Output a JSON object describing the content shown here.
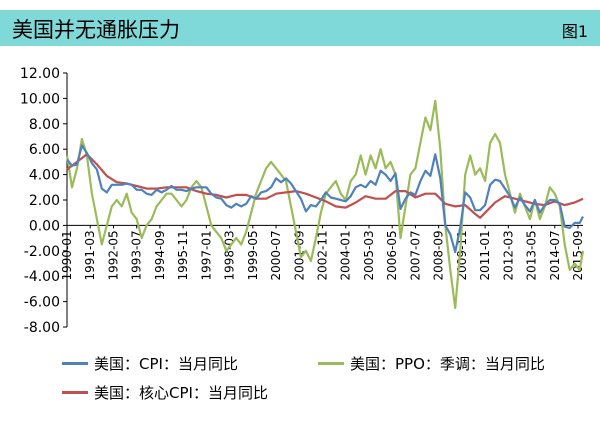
{
  "header": {
    "title": "美国并无通胀压力",
    "figure_label": "图1",
    "background": "#7fd9d9"
  },
  "chart_data": {
    "type": "line",
    "title": "美国并无通胀压力",
    "xlabel": "",
    "ylabel": "",
    "ylim": [
      -8,
      12
    ],
    "yticks": [
      -8,
      -6,
      -4,
      -2,
      0,
      2,
      4,
      6,
      8,
      10,
      12
    ],
    "ytick_labels": [
      "-8.00",
      "-6.00",
      "-4.00",
      "-2.00",
      "0.00",
      "2.00",
      "4.00",
      "6.00",
      "8.00",
      "10.00",
      "12.00"
    ],
    "xtick_labels": [
      "1990-01",
      "1991-03",
      "1992-05",
      "1993-07",
      "1994-09",
      "1995-11",
      "1997-01",
      "1998-03",
      "1999-05",
      "2000-07",
      "2001-09",
      "2002-11",
      "2004-01",
      "2005-03",
      "2006-05",
      "2007-07",
      "2008-09",
      "2009-11",
      "2011-01",
      "2012-03",
      "2013-05",
      "2014-07",
      "2015-09"
    ],
    "grid": false,
    "legend_position": "bottom",
    "series": [
      {
        "name": "美国：CPI：当月同比",
        "color": "#4f81bd",
        "points": [
          [
            "1990-01",
            5.2
          ],
          [
            "1990-04",
            4.7
          ],
          [
            "1990-07",
            4.8
          ],
          [
            "1990-10",
            6.3
          ],
          [
            "1991-01",
            5.7
          ],
          [
            "1991-04",
            4.9
          ],
          [
            "1991-07",
            4.4
          ],
          [
            "1991-10",
            2.9
          ],
          [
            "1992-01",
            2.6
          ],
          [
            "1992-04",
            3.2
          ],
          [
            "1992-07",
            3.2
          ],
          [
            "1992-10",
            3.2
          ],
          [
            "1993-01",
            3.3
          ],
          [
            "1993-04",
            3.2
          ],
          [
            "1993-07",
            2.8
          ],
          [
            "1993-10",
            2.8
          ],
          [
            "1994-01",
            2.5
          ],
          [
            "1994-04",
            2.4
          ],
          [
            "1994-07",
            2.8
          ],
          [
            "1994-10",
            2.6
          ],
          [
            "1995-01",
            2.8
          ],
          [
            "1995-04",
            3.1
          ],
          [
            "1995-07",
            2.8
          ],
          [
            "1995-10",
            2.8
          ],
          [
            "1996-01",
            2.7
          ],
          [
            "1996-04",
            2.9
          ],
          [
            "1996-07",
            3.0
          ],
          [
            "1996-10",
            3.0
          ],
          [
            "1997-01",
            3.0
          ],
          [
            "1997-04",
            2.5
          ],
          [
            "1997-07",
            2.2
          ],
          [
            "1997-10",
            2.1
          ],
          [
            "1998-01",
            1.6
          ],
          [
            "1998-04",
            1.4
          ],
          [
            "1998-07",
            1.7
          ],
          [
            "1998-10",
            1.5
          ],
          [
            "1999-01",
            1.7
          ],
          [
            "1999-04",
            2.3
          ],
          [
            "1999-07",
            2.1
          ],
          [
            "1999-10",
            2.6
          ],
          [
            "2000-01",
            2.7
          ],
          [
            "2000-04",
            3.0
          ],
          [
            "2000-07",
            3.7
          ],
          [
            "2000-10",
            3.4
          ],
          [
            "2001-01",
            3.7
          ],
          [
            "2001-04",
            3.3
          ],
          [
            "2001-07",
            2.7
          ],
          [
            "2001-10",
            2.1
          ],
          [
            "2002-01",
            1.1
          ],
          [
            "2002-04",
            1.6
          ],
          [
            "2002-07",
            1.5
          ],
          [
            "2002-10",
            2.0
          ],
          [
            "2003-01",
            2.6
          ],
          [
            "2003-04",
            2.2
          ],
          [
            "2003-07",
            2.1
          ],
          [
            "2003-10",
            2.0
          ],
          [
            "2004-01",
            1.9
          ],
          [
            "2004-04",
            2.3
          ],
          [
            "2004-07",
            3.0
          ],
          [
            "2004-10",
            3.2
          ],
          [
            "2005-01",
            3.0
          ],
          [
            "2005-04",
            3.5
          ],
          [
            "2005-07",
            3.2
          ],
          [
            "2005-10",
            4.3
          ],
          [
            "2006-01",
            4.0
          ],
          [
            "2006-04",
            3.5
          ],
          [
            "2006-07",
            4.1
          ],
          [
            "2006-10",
            1.3
          ],
          [
            "2007-01",
            2.1
          ],
          [
            "2007-04",
            2.6
          ],
          [
            "2007-07",
            2.4
          ],
          [
            "2007-10",
            3.5
          ],
          [
            "2008-01",
            4.3
          ],
          [
            "2008-04",
            3.9
          ],
          [
            "2008-07",
            5.6
          ],
          [
            "2008-10",
            3.7
          ],
          [
            "2009-01",
            0.0
          ],
          [
            "2009-04",
            -0.7
          ],
          [
            "2009-07",
            -2.1
          ],
          [
            "2009-10",
            -0.2
          ],
          [
            "2010-01",
            2.6
          ],
          [
            "2010-04",
            2.2
          ],
          [
            "2010-07",
            1.2
          ],
          [
            "2010-10",
            1.2
          ],
          [
            "2011-01",
            1.6
          ],
          [
            "2011-04",
            3.2
          ],
          [
            "2011-07",
            3.6
          ],
          [
            "2011-10",
            3.5
          ],
          [
            "2012-01",
            2.9
          ],
          [
            "2012-04",
            2.3
          ],
          [
            "2012-07",
            1.4
          ],
          [
            "2012-10",
            2.2
          ],
          [
            "2013-01",
            1.6
          ],
          [
            "2013-04",
            1.1
          ],
          [
            "2013-07",
            2.0
          ],
          [
            "2013-10",
            1.0
          ],
          [
            "2014-01",
            1.6
          ],
          [
            "2014-04",
            2.0
          ],
          [
            "2014-07",
            2.0
          ],
          [
            "2014-10",
            1.7
          ],
          [
            "2015-01",
            -0.1
          ],
          [
            "2015-04",
            -0.2
          ],
          [
            "2015-07",
            0.2
          ],
          [
            "2015-10",
            0.2
          ],
          [
            "2015-12",
            0.7
          ]
        ]
      },
      {
        "name": "美国：PPO：季调：当月同比",
        "color": "#9bbb59",
        "points": [
          [
            "1990-01",
            5.5
          ],
          [
            "1990-04",
            3.0
          ],
          [
            "1990-07",
            4.5
          ],
          [
            "1990-10",
            6.8
          ],
          [
            "1991-01",
            5.5
          ],
          [
            "1991-04",
            2.5
          ],
          [
            "1991-07",
            0.5
          ],
          [
            "1991-10",
            -1.5
          ],
          [
            "1992-01",
            0.0
          ],
          [
            "1992-04",
            1.5
          ],
          [
            "1992-07",
            2.0
          ],
          [
            "1992-10",
            1.5
          ],
          [
            "1993-01",
            2.5
          ],
          [
            "1993-04",
            1.0
          ],
          [
            "1993-07",
            0.5
          ],
          [
            "1993-10",
            -1.0
          ],
          [
            "1994-01",
            0.0
          ],
          [
            "1994-04",
            0.5
          ],
          [
            "1994-07",
            1.5
          ],
          [
            "1994-10",
            2.0
          ],
          [
            "1995-01",
            2.5
          ],
          [
            "1995-04",
            2.5
          ],
          [
            "1995-07",
            2.0
          ],
          [
            "1995-10",
            1.5
          ],
          [
            "1996-01",
            2.0
          ],
          [
            "1996-04",
            3.0
          ],
          [
            "1996-07",
            3.5
          ],
          [
            "1996-10",
            3.0
          ],
          [
            "1997-01",
            1.5
          ],
          [
            "1997-04",
            0.0
          ],
          [
            "1997-07",
            -0.5
          ],
          [
            "1997-10",
            -1.0
          ],
          [
            "1998-01",
            -2.0
          ],
          [
            "1998-04",
            -1.5
          ],
          [
            "1998-07",
            -1.0
          ],
          [
            "1998-10",
            -1.5
          ],
          [
            "1999-01",
            -0.5
          ],
          [
            "1999-04",
            1.0
          ],
          [
            "1999-07",
            2.5
          ],
          [
            "1999-10",
            3.5
          ],
          [
            "2000-01",
            4.5
          ],
          [
            "2000-04",
            5.0
          ],
          [
            "2000-07",
            4.5
          ],
          [
            "2000-10",
            4.0
          ],
          [
            "2001-01",
            3.5
          ],
          [
            "2001-04",
            1.5
          ],
          [
            "2001-07",
            -0.5
          ],
          [
            "2001-10",
            -2.5
          ],
          [
            "2002-01",
            -2.0
          ],
          [
            "2002-04",
            -2.8
          ],
          [
            "2002-07",
            -1.0
          ],
          [
            "2002-10",
            1.0
          ],
          [
            "2003-01",
            2.5
          ],
          [
            "2003-04",
            3.0
          ],
          [
            "2003-07",
            3.5
          ],
          [
            "2003-10",
            2.5
          ],
          [
            "2004-01",
            2.0
          ],
          [
            "2004-04",
            3.5
          ],
          [
            "2004-07",
            4.0
          ],
          [
            "2004-10",
            5.5
          ],
          [
            "2005-01",
            4.0
          ],
          [
            "2005-04",
            5.5
          ],
          [
            "2005-07",
            4.5
          ],
          [
            "2005-10",
            6.0
          ],
          [
            "2006-01",
            4.5
          ],
          [
            "2006-04",
            5.0
          ],
          [
            "2006-07",
            4.0
          ],
          [
            "2006-10",
            -1.0
          ],
          [
            "2007-01",
            1.5
          ],
          [
            "2007-04",
            4.0
          ],
          [
            "2007-07",
            4.5
          ],
          [
            "2007-10",
            6.5
          ],
          [
            "2008-01",
            8.5
          ],
          [
            "2008-04",
            7.5
          ],
          [
            "2008-07",
            9.8
          ],
          [
            "2008-10",
            6.0
          ],
          [
            "2009-01",
            0.0
          ],
          [
            "2009-04",
            -3.5
          ],
          [
            "2009-07",
            -6.5
          ],
          [
            "2009-10",
            -2.0
          ],
          [
            "2010-01",
            4.0
          ],
          [
            "2010-04",
            5.5
          ],
          [
            "2010-07",
            4.0
          ],
          [
            "2010-10",
            4.5
          ],
          [
            "2011-01",
            3.5
          ],
          [
            "2011-04",
            6.5
          ],
          [
            "2011-07",
            7.2
          ],
          [
            "2011-10",
            6.5
          ],
          [
            "2012-01",
            4.0
          ],
          [
            "2012-04",
            2.5
          ],
          [
            "2012-07",
            1.0
          ],
          [
            "2012-10",
            2.5
          ],
          [
            "2013-01",
            1.5
          ],
          [
            "2013-04",
            0.5
          ],
          [
            "2013-07",
            2.0
          ],
          [
            "2013-10",
            0.5
          ],
          [
            "2014-01",
            1.5
          ],
          [
            "2014-04",
            3.0
          ],
          [
            "2014-07",
            2.5
          ],
          [
            "2014-10",
            1.5
          ],
          [
            "2015-01",
            -1.5
          ],
          [
            "2015-04",
            -3.5
          ],
          [
            "2015-07",
            -3.0
          ],
          [
            "2015-10",
            -3.5
          ],
          [
            "2015-12",
            -2.0
          ]
        ]
      },
      {
        "name": "美国：核心CPI：当月同比",
        "color": "#c0504d",
        "points": [
          [
            "1990-01",
            4.4
          ],
          [
            "1990-07",
            5.0
          ],
          [
            "1991-01",
            5.6
          ],
          [
            "1991-07",
            4.8
          ],
          [
            "1992-01",
            3.9
          ],
          [
            "1992-07",
            3.4
          ],
          [
            "1993-01",
            3.3
          ],
          [
            "1993-07",
            3.1
          ],
          [
            "1994-01",
            2.9
          ],
          [
            "1994-07",
            2.9
          ],
          [
            "1995-01",
            3.0
          ],
          [
            "1995-07",
            3.0
          ],
          [
            "1996-01",
            3.0
          ],
          [
            "1996-07",
            2.7
          ],
          [
            "1997-01",
            2.5
          ],
          [
            "1997-07",
            2.4
          ],
          [
            "1998-01",
            2.2
          ],
          [
            "1998-07",
            2.4
          ],
          [
            "1999-01",
            2.4
          ],
          [
            "1999-07",
            2.1
          ],
          [
            "2000-01",
            2.1
          ],
          [
            "2000-07",
            2.5
          ],
          [
            "2001-01",
            2.6
          ],
          [
            "2001-07",
            2.7
          ],
          [
            "2002-01",
            2.5
          ],
          [
            "2002-07",
            2.2
          ],
          [
            "2003-01",
            1.9
          ],
          [
            "2003-07",
            1.5
          ],
          [
            "2004-01",
            1.4
          ],
          [
            "2004-07",
            1.8
          ],
          [
            "2005-01",
            2.3
          ],
          [
            "2005-07",
            2.1
          ],
          [
            "2006-01",
            2.1
          ],
          [
            "2006-07",
            2.7
          ],
          [
            "2007-01",
            2.7
          ],
          [
            "2007-07",
            2.2
          ],
          [
            "2008-01",
            2.5
          ],
          [
            "2008-07",
            2.5
          ],
          [
            "2009-01",
            1.7
          ],
          [
            "2009-07",
            1.5
          ],
          [
            "2010-01",
            1.6
          ],
          [
            "2010-07",
            0.9
          ],
          [
            "2010-10",
            0.6
          ],
          [
            "2011-01",
            1.0
          ],
          [
            "2011-07",
            1.8
          ],
          [
            "2012-01",
            2.3
          ],
          [
            "2012-07",
            2.1
          ],
          [
            "2013-01",
            1.9
          ],
          [
            "2013-07",
            1.7
          ],
          [
            "2014-01",
            1.6
          ],
          [
            "2014-07",
            1.9
          ],
          [
            "2015-01",
            1.6
          ],
          [
            "2015-07",
            1.8
          ],
          [
            "2015-12",
            2.1
          ]
        ]
      }
    ]
  }
}
